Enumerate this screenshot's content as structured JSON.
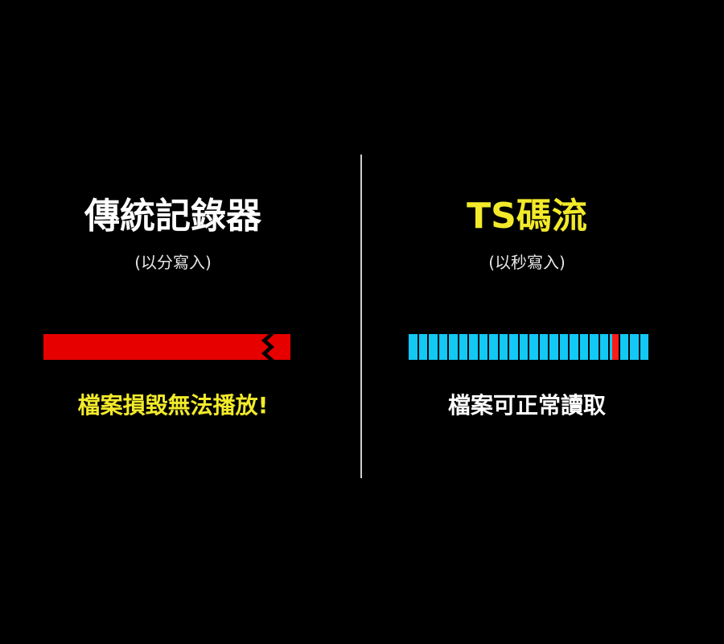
{
  "left": {
    "title": "傳統記錄器",
    "subtitle": "(以分寫入)",
    "result": "檔案損毀無法播放!",
    "bar_state": "single continuous file, broken near end"
  },
  "right": {
    "title": "TS碼流",
    "subtitle": "(以秒寫入)",
    "result": "檔案可正常讀取",
    "segment_count": 24,
    "damaged_segment_index": 21
  },
  "colors": {
    "background": "#000000",
    "title_left": "#ffffff",
    "title_right": "#f2ea2a",
    "result_left": "#f2ea2a",
    "result_right": "#ffffff",
    "red_bar": "#e60000",
    "segment": "#12c8f5",
    "damaged_segment": "#ff1a1a"
  }
}
